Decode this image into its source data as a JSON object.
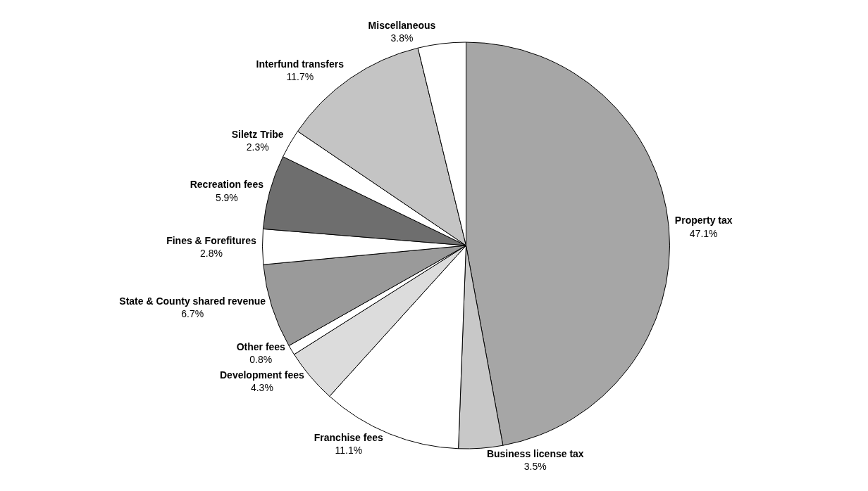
{
  "chart_data": {
    "type": "pie",
    "categories": [
      "Property tax",
      "Business license tax",
      "Franchise fees",
      "Development fees",
      "Other fees",
      "State & County shared revenue",
      "Fines & Forefitures",
      "Recreation fees",
      "Siletz Tribe",
      "Interfund transfers",
      "Miscellaneous"
    ],
    "values": [
      47.1,
      3.5,
      11.1,
      4.3,
      0.8,
      6.7,
      2.8,
      5.9,
      2.3,
      11.7,
      3.8
    ],
    "value_labels": [
      "47.1%",
      "3.5%",
      "11.1%",
      "4.3%",
      "0.8%",
      "6.7%",
      "2.8%",
      "5.9%",
      "2.3%",
      "11.7%",
      "3.8%"
    ],
    "colors": [
      "#a6a6a6",
      "#c8c8c8",
      "#ffffff",
      "#dcdcdc",
      "#ffffff",
      "#9a9a9a",
      "#ffffff",
      "#6e6e6e",
      "#ffffff",
      "#c4c4c4",
      "#ffffff"
    ],
    "legend": false
  }
}
